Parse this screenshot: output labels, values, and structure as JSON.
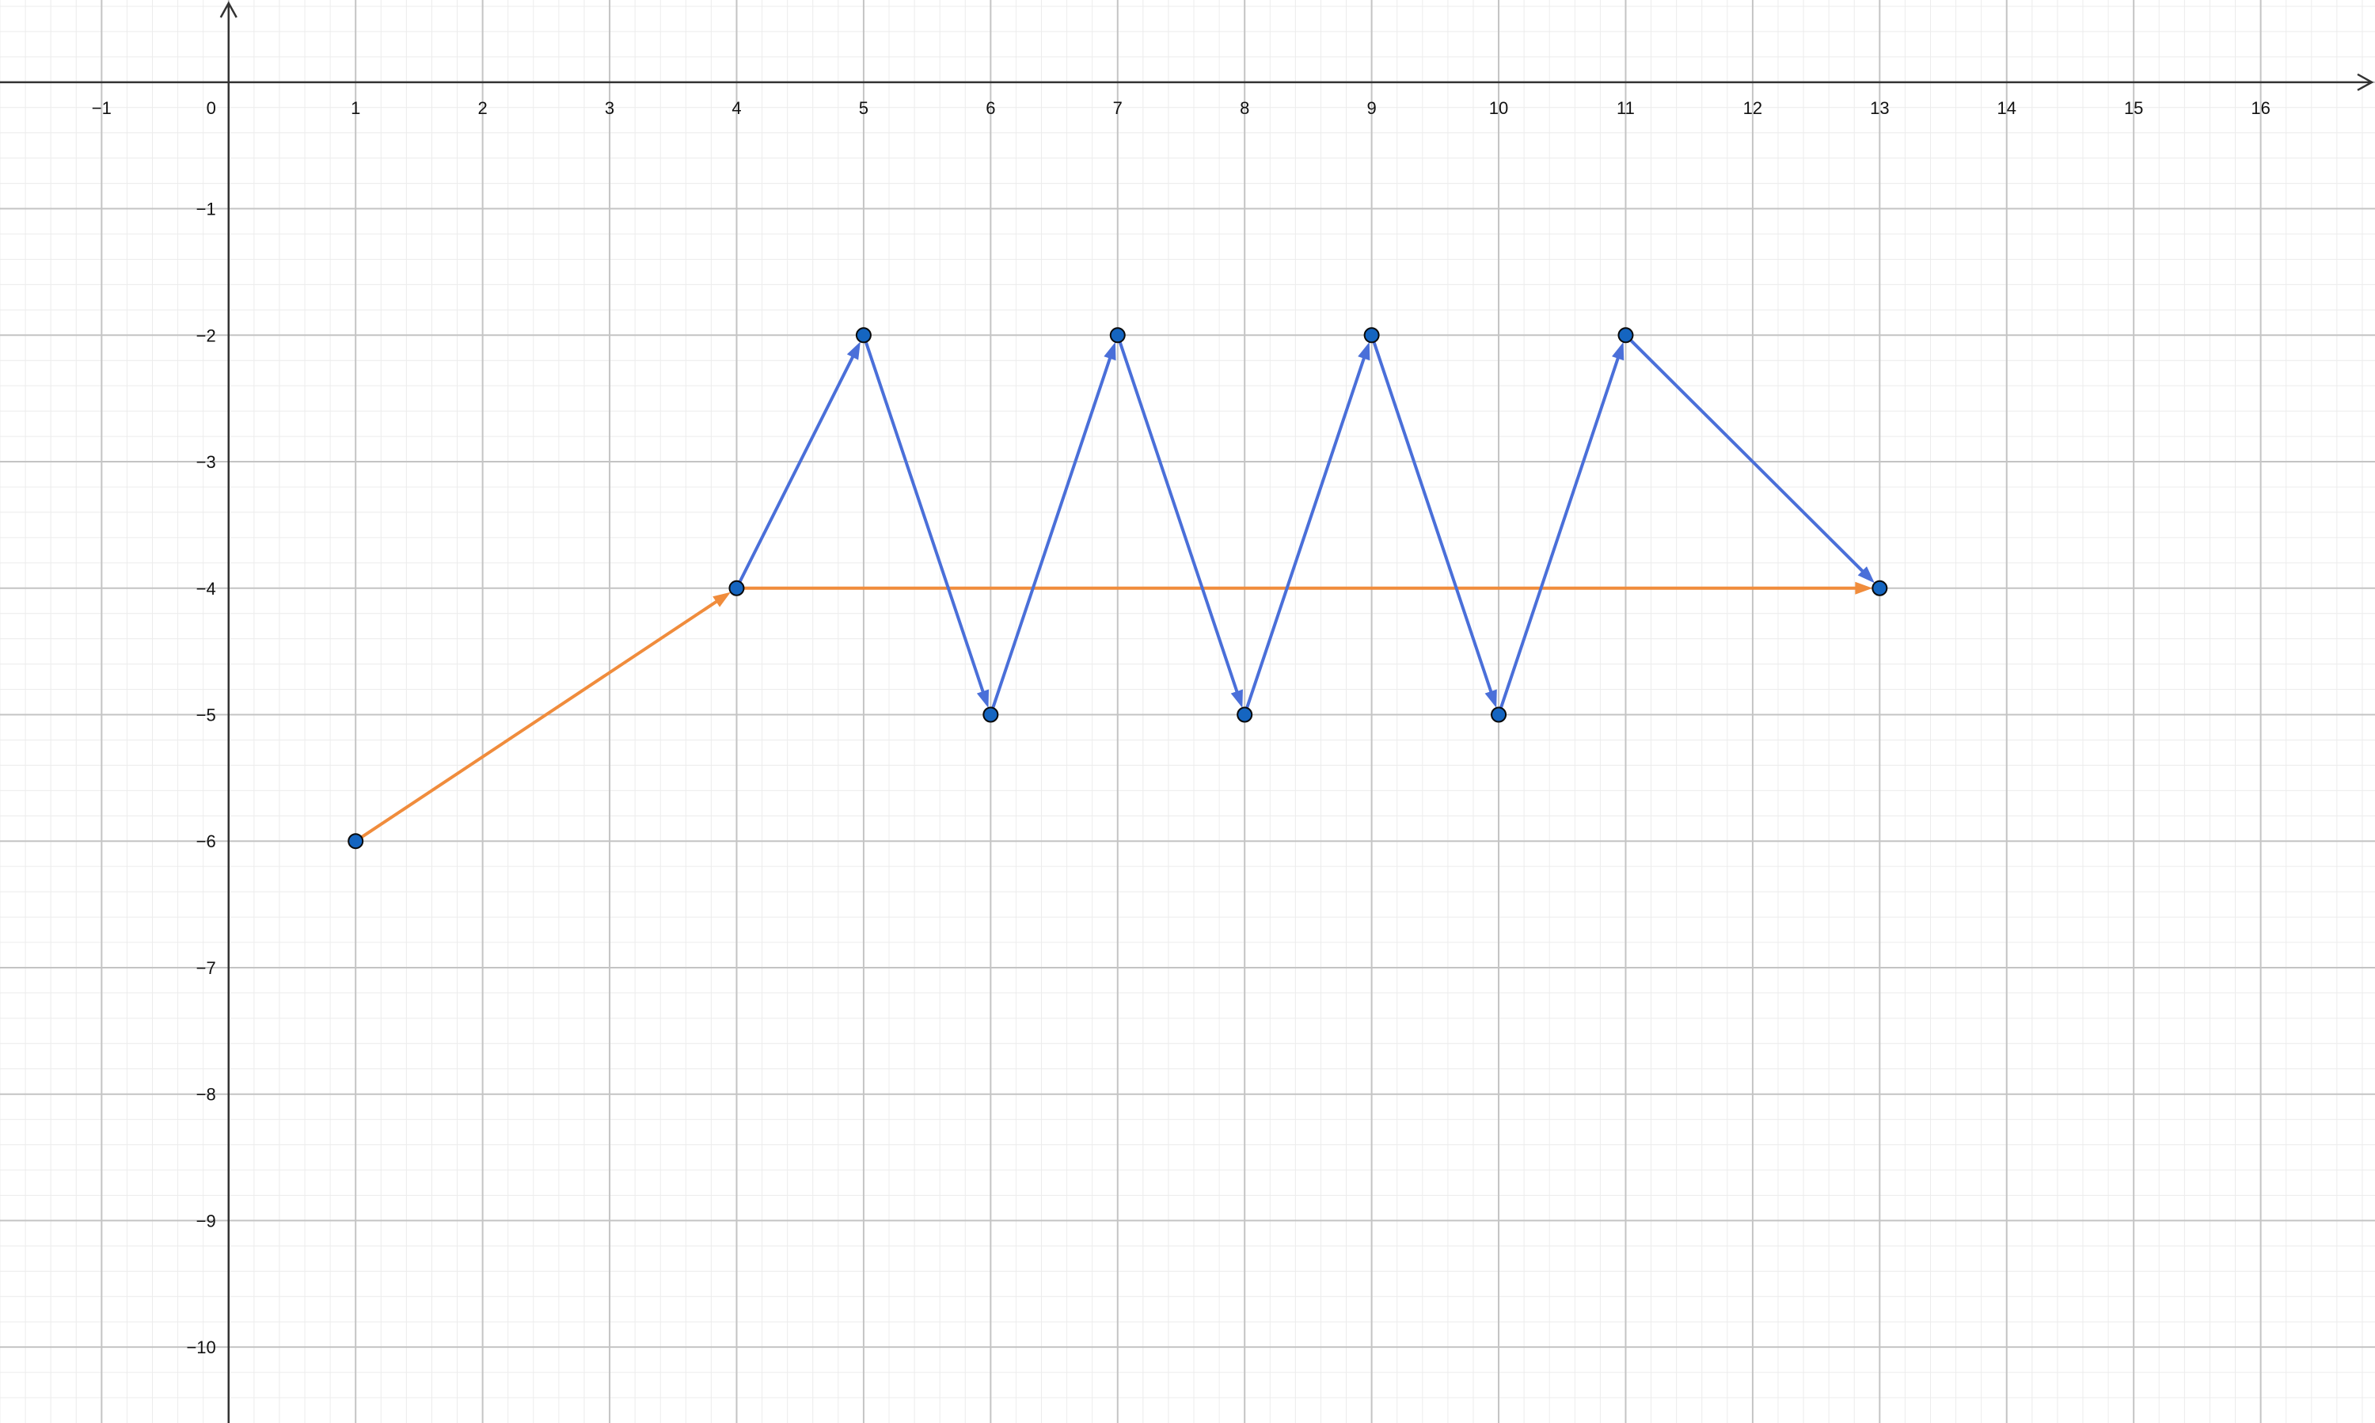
{
  "chart_data": {
    "type": "scatter",
    "xlim": [
      -1.8,
      16.9
    ],
    "ylim": [
      -10.6,
      0.65
    ],
    "x_ticks": [
      {
        "value": -1,
        "label": "−1"
      },
      {
        "value": 0,
        "label": "0"
      },
      {
        "value": 1,
        "label": "1"
      },
      {
        "value": 2,
        "label": "2"
      },
      {
        "value": 3,
        "label": "3"
      },
      {
        "value": 4,
        "label": "4"
      },
      {
        "value": 5,
        "label": "5"
      },
      {
        "value": 6,
        "label": "6"
      },
      {
        "value": 7,
        "label": "7"
      },
      {
        "value": 8,
        "label": "8"
      },
      {
        "value": 9,
        "label": "9"
      },
      {
        "value": 10,
        "label": "10"
      },
      {
        "value": 11,
        "label": "11"
      },
      {
        "value": 12,
        "label": "12"
      },
      {
        "value": 13,
        "label": "13"
      },
      {
        "value": 14,
        "label": "14"
      },
      {
        "value": 15,
        "label": "15"
      },
      {
        "value": 16,
        "label": "16"
      }
    ],
    "y_ticks": [
      {
        "value": -1,
        "label": "−1"
      },
      {
        "value": -2,
        "label": "−2"
      },
      {
        "value": -3,
        "label": "−3"
      },
      {
        "value": -4,
        "label": "−4"
      },
      {
        "value": -5,
        "label": "−5"
      },
      {
        "value": -6,
        "label": "−6"
      },
      {
        "value": -7,
        "label": "−7"
      },
      {
        "value": -8,
        "label": "−8"
      },
      {
        "value": -9,
        "label": "−9"
      },
      {
        "value": -10,
        "label": "−10"
      }
    ],
    "grid": true,
    "minor_grid_divisions": 5,
    "points": [
      {
        "x": 1,
        "y": -6
      },
      {
        "x": 4,
        "y": -4
      },
      {
        "x": 5,
        "y": -2
      },
      {
        "x": 6,
        "y": -5
      },
      {
        "x": 7,
        "y": -2
      },
      {
        "x": 8,
        "y": -5
      },
      {
        "x": 9,
        "y": -2
      },
      {
        "x": 10,
        "y": -5
      },
      {
        "x": 11,
        "y": -2
      },
      {
        "x": 13,
        "y": -4
      }
    ],
    "point_color": "#1565c0",
    "vector_series": [
      {
        "color": "#f08c3c",
        "vectors": [
          {
            "from": [
              1,
              -6
            ],
            "to": [
              4,
              -4
            ]
          },
          {
            "from": [
              4,
              -4
            ],
            "to": [
              13,
              -4
            ]
          }
        ]
      },
      {
        "color": "#4a6fd9",
        "vectors": [
          {
            "from": [
              4,
              -4
            ],
            "to": [
              5,
              -2
            ]
          },
          {
            "from": [
              5,
              -2
            ],
            "to": [
              6,
              -5
            ]
          },
          {
            "from": [
              6,
              -5
            ],
            "to": [
              7,
              -2
            ]
          },
          {
            "from": [
              7,
              -2
            ],
            "to": [
              8,
              -5
            ]
          },
          {
            "from": [
              8,
              -5
            ],
            "to": [
              9,
              -2
            ]
          },
          {
            "from": [
              9,
              -2
            ],
            "to": [
              10,
              -5
            ]
          },
          {
            "from": [
              10,
              -5
            ],
            "to": [
              11,
              -2
            ]
          },
          {
            "from": [
              11,
              -2
            ],
            "to": [
              13,
              -4
            ]
          }
        ]
      }
    ]
  }
}
